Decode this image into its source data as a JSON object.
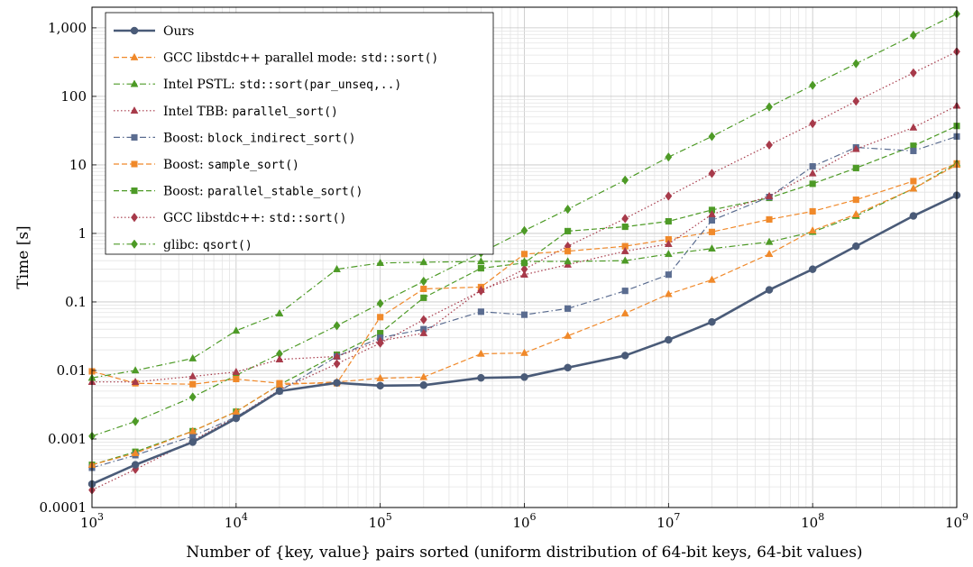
{
  "chart_data": {
    "type": "line",
    "xscale": "log",
    "yscale": "log",
    "xlim": [
      1000,
      1000000000
    ],
    "ylim": [
      0.0001,
      2000
    ],
    "xlabel": "Number of {key, value} pairs sorted (uniform distribution of 64-bit keys, 64-bit values)",
    "ylabel": "Time [s]",
    "grid": true,
    "legend_position": "top-left",
    "x_ticks": [
      {
        "value": 1000,
        "base": "10",
        "exp": "3"
      },
      {
        "value": 10000,
        "base": "10",
        "exp": "4"
      },
      {
        "value": 100000,
        "base": "10",
        "exp": "5"
      },
      {
        "value": 1000000,
        "base": "10",
        "exp": "6"
      },
      {
        "value": 10000000,
        "base": "10",
        "exp": "7"
      },
      {
        "value": 100000000,
        "base": "10",
        "exp": "8"
      },
      {
        "value": 1000000000,
        "base": "10",
        "exp": "9"
      }
    ],
    "y_ticks": [
      {
        "value": 0.0001,
        "label": "0.0001"
      },
      {
        "value": 0.001,
        "label": "0.001"
      },
      {
        "value": 0.01,
        "label": "0.01"
      },
      {
        "value": 0.1,
        "label": "0.1"
      },
      {
        "value": 1,
        "label": "1"
      },
      {
        "value": 10,
        "label": "10"
      },
      {
        "value": 100,
        "label": "100"
      },
      {
        "value": 1000,
        "label": "1,000"
      }
    ],
    "x": [
      1000,
      2000,
      5000,
      10000,
      20000,
      50000,
      100000,
      200000,
      500000,
      1000000,
      2000000,
      5000000,
      10000000,
      20000000,
      50000000,
      100000000,
      200000000,
      500000000,
      1000000000
    ],
    "series": [
      {
        "name": "Ours",
        "name_parts": [
          {
            "t": "Ours"
          }
        ],
        "color": "#4a5b78",
        "dash": "",
        "width": 2.6,
        "marker": "circle",
        "values": [
          0.00022,
          0.00042,
          0.0009,
          0.002,
          0.005,
          0.0066,
          0.006,
          0.0061,
          0.0078,
          0.008,
          0.011,
          0.0165,
          0.028,
          0.051,
          0.15,
          0.3,
          0.65,
          1.8,
          3.6
        ]
      },
      {
        "name": "GCC libstdc++ parallel mode: std::sort()",
        "name_parts": [
          {
            "t": "GCC libstdc++ parallel mode: "
          },
          {
            "t": "std::sort()",
            "mono": true
          }
        ],
        "color": "#f0892a",
        "dash": "6,3",
        "width": 1.2,
        "marker": "triangle",
        "values": [
          0.00042,
          0.00062,
          0.0013,
          0.0025,
          0.0062,
          0.0068,
          0.0077,
          0.008,
          0.0175,
          0.018,
          0.032,
          0.068,
          0.13,
          0.21,
          0.5,
          1.1,
          1.9,
          4.5,
          10
        ]
      },
      {
        "name": "Intel PSTL: std::sort(par_unseq,..)",
        "name_parts": [
          {
            "t": "Intel PSTL: "
          },
          {
            "t": "std::sort(par_unseq,..)",
            "mono": true
          }
        ],
        "color": "#4d9a26",
        "dash": "7,3,1.5,3",
        "width": 1.2,
        "marker": "triangle",
        "values": [
          0.0078,
          0.01,
          0.015,
          0.038,
          0.068,
          0.3,
          0.37,
          0.38,
          0.39,
          0.39,
          0.39,
          0.4,
          0.5,
          0.6,
          0.75,
          1.05,
          1.8,
          4.5,
          10.5
        ]
      },
      {
        "name": "Intel TBB: parallel_sort()",
        "name_parts": [
          {
            "t": "Intel TBB: "
          },
          {
            "t": "parallel_sort()",
            "mono": true
          }
        ],
        "color": "#a73a4a",
        "dash": "1.5,2.5",
        "width": 1.2,
        "marker": "triangle",
        "values": [
          0.0068,
          0.0068,
          0.0082,
          0.0095,
          0.0145,
          0.016,
          0.027,
          0.035,
          0.15,
          0.25,
          0.35,
          0.55,
          0.7,
          1.9,
          3.5,
          7.5,
          17,
          35,
          73
        ]
      },
      {
        "name": "Boost: block_indirect_sort()",
        "name_parts": [
          {
            "t": "Boost: "
          },
          {
            "t": "block_indirect_sort()",
            "mono": true
          }
        ],
        "color": "#5a6c90",
        "dash": "7,3,1.5,3",
        "width": 1.2,
        "marker": "square",
        "values": [
          0.00038,
          0.00058,
          0.0011,
          0.0021,
          0.005,
          0.016,
          0.03,
          0.04,
          0.072,
          0.065,
          0.08,
          0.145,
          0.25,
          1.55,
          3.4,
          9.5,
          18,
          16,
          26
        ]
      },
      {
        "name": "Boost: sample_sort()",
        "name_parts": [
          {
            "t": "Boost: "
          },
          {
            "t": "sample_sort()",
            "mono": true
          }
        ],
        "color": "#f0892a",
        "dash": "6,3",
        "width": 1.2,
        "marker": "square",
        "values": [
          0.0097,
          0.0065,
          0.0063,
          0.0075,
          0.0065,
          0.0065,
          0.06,
          0.155,
          0.165,
          0.5,
          0.55,
          0.65,
          0.82,
          1.05,
          1.6,
          2.1,
          3.1,
          5.8,
          10.5
        ]
      },
      {
        "name": "Boost: parallel_stable_sort()",
        "name_parts": [
          {
            "t": "Boost: "
          },
          {
            "t": "parallel_stable_sort()",
            "mono": true
          }
        ],
        "color": "#4d9a26",
        "dash": "6,3",
        "width": 1.2,
        "marker": "square",
        "values": [
          0.00042,
          0.00065,
          0.0013,
          0.0025,
          0.0062,
          0.017,
          0.035,
          0.115,
          0.31,
          0.37,
          1.08,
          1.25,
          1.5,
          2.2,
          3.3,
          5.3,
          9,
          19,
          37
        ]
      },
      {
        "name": "GCC libstdc++: std::sort()",
        "name_parts": [
          {
            "t": "GCC libstdc++: "
          },
          {
            "t": "std::sort()",
            "mono": true
          }
        ],
        "color": "#a73a4a",
        "dash": "1.5,2.5",
        "width": 1.2,
        "marker": "diamond",
        "values": [
          0.00018,
          0.00036,
          0.00095,
          0.0021,
          0.0052,
          0.0125,
          0.025,
          0.055,
          0.145,
          0.3,
          0.65,
          1.65,
          3.5,
          7.5,
          19.5,
          40,
          85,
          220,
          450
        ]
      },
      {
        "name": "glibc: qsort()",
        "name_parts": [
          {
            "t": "glibc: "
          },
          {
            "t": "qsort()",
            "mono": true
          }
        ],
        "color": "#4d9a26",
        "dash": "7,3,1.5,3",
        "width": 1.2,
        "marker": "diamond",
        "values": [
          0.0011,
          0.0018,
          0.0041,
          0.0085,
          0.0175,
          0.045,
          0.095,
          0.2,
          0.52,
          1.1,
          2.25,
          6,
          13,
          26,
          70,
          145,
          300,
          780,
          1600
        ]
      }
    ]
  }
}
